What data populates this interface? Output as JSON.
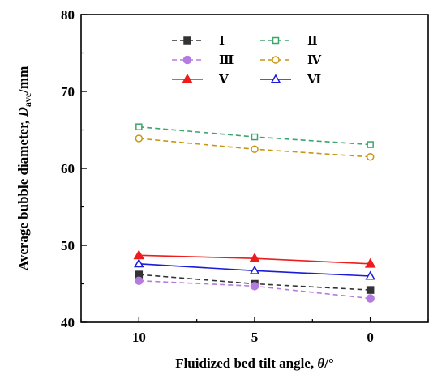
{
  "chart_data": {
    "type": "line",
    "xlabel_main": "Fluidized bed tilt angle, ",
    "xlabel_sym": "θ",
    "xlabel_unit": "/°",
    "ylabel_main": "Average bubble diameter, ",
    "ylabel_sym": "D",
    "ylabel_sub": "ave",
    "ylabel_unit": "/mm",
    "x": [
      10,
      5,
      0
    ],
    "xticks": [
      "10",
      "5",
      "0"
    ],
    "xlim": [
      12.5,
      -2.5
    ],
    "xaxis_reversed": true,
    "yticks": [
      "40",
      "50",
      "60",
      "70",
      "80"
    ],
    "ylim": [
      40,
      80
    ],
    "grid": false,
    "legend_position": "top",
    "series": [
      {
        "name": "Ⅰ",
        "values": [
          46.2,
          45.0,
          44.2
        ],
        "color": "#333333",
        "marker": "square-filled",
        "dash": "dashed"
      },
      {
        "name": "Ⅱ",
        "values": [
          65.4,
          64.1,
          63.1
        ],
        "color": "#3aa56c",
        "marker": "square-open",
        "dash": "dashed"
      },
      {
        "name": "Ⅲ",
        "values": [
          45.4,
          44.7,
          43.1
        ],
        "color": "#b57be0",
        "marker": "circle-filled",
        "dash": "dashed"
      },
      {
        "name": "Ⅳ",
        "values": [
          63.9,
          62.5,
          61.5
        ],
        "color": "#c9960f",
        "marker": "circle-open",
        "dash": "dashed"
      },
      {
        "name": "Ⅴ",
        "values": [
          48.7,
          48.3,
          47.6
        ],
        "color": "#ee1c1c",
        "marker": "triangle-filled",
        "dash": "solid"
      },
      {
        "name": "Ⅵ",
        "values": [
          47.6,
          46.7,
          46.0
        ],
        "color": "#1b1bd8",
        "marker": "triangle-open",
        "dash": "solid"
      }
    ]
  }
}
